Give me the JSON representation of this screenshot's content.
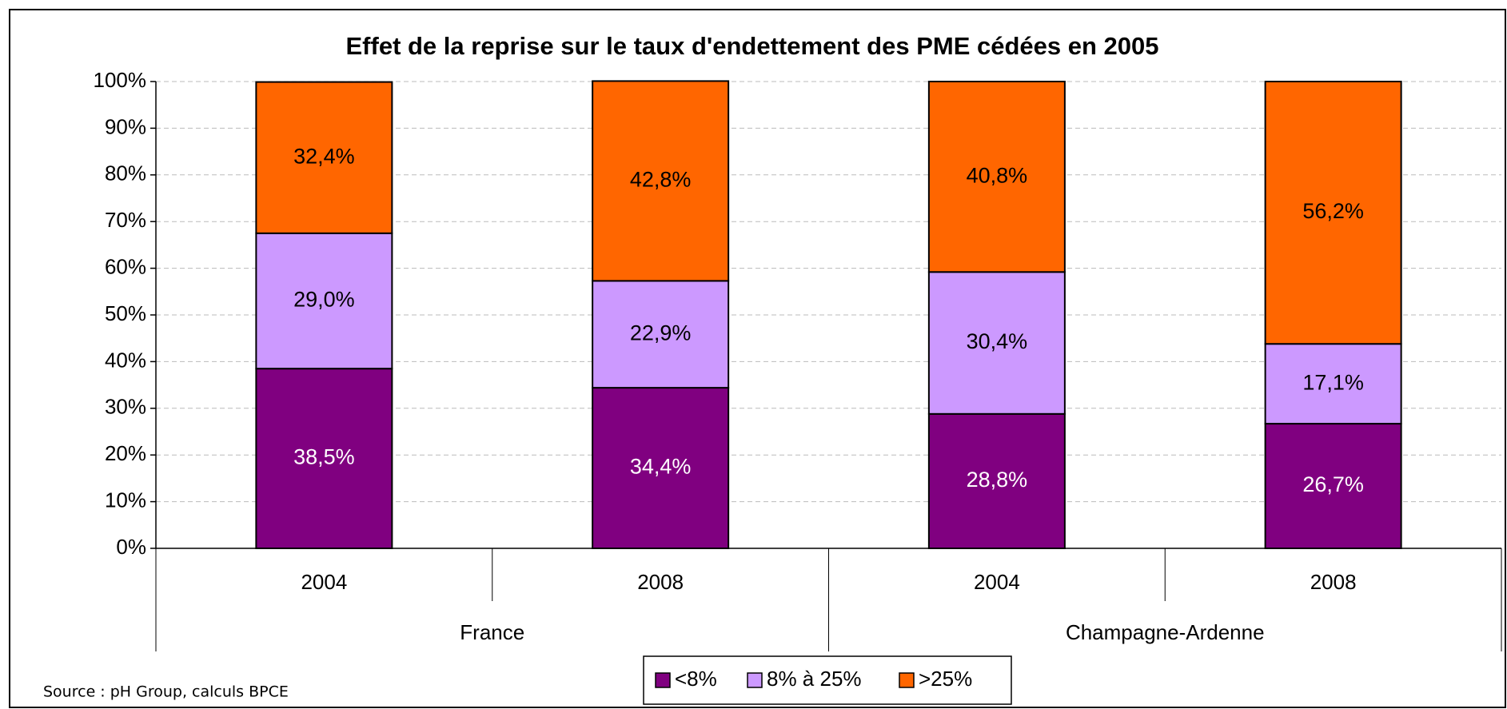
{
  "chart_data": {
    "type": "stacked_bar",
    "title": "Effet de la reprise sur le taux d'endettement des PME cédées en 2005",
    "categories": [
      "2004",
      "2008",
      "2004",
      "2008"
    ],
    "groups": [
      {
        "name": "France",
        "size": 2
      },
      {
        "name": "Champagne-Ardenne",
        "size": 2
      }
    ],
    "series": [
      {
        "name": "<8%",
        "color": "#800080",
        "label_color": "#ffffff",
        "values": [
          38.5,
          34.4,
          28.8,
          26.7
        ],
        "value_labels": [
          "38,5%",
          "34,4%",
          "28,8%",
          "26,7%"
        ]
      },
      {
        "name": "8% à 25%",
        "color": "#cc99ff",
        "label_color": "#000000",
        "values": [
          29.0,
          22.9,
          30.4,
          17.1
        ],
        "value_labels": [
          "29,0%",
          "22,9%",
          "30,4%",
          "17,1%"
        ]
      },
      {
        "name": ">25%",
        "color": "#ff6600",
        "label_color": "#000000",
        "values": [
          32.4,
          42.8,
          40.8,
          56.2
        ],
        "value_labels": [
          "32,4%",
          "42,8%",
          "40,8%",
          "56,2%"
        ]
      }
    ],
    "ylim": [
      0,
      100
    ],
    "yticks": [
      {
        "value": 0,
        "label": "0%"
      },
      {
        "value": 10,
        "label": "10%"
      },
      {
        "value": 20,
        "label": "20%"
      },
      {
        "value": 30,
        "label": "30%"
      },
      {
        "value": 40,
        "label": "40%"
      },
      {
        "value": 50,
        "label": "50%"
      },
      {
        "value": 60,
        "label": "60%"
      },
      {
        "value": 70,
        "label": "70%"
      },
      {
        "value": 80,
        "label": "80%"
      },
      {
        "value": 90,
        "label": "90%"
      },
      {
        "value": 100,
        "label": "100%"
      }
    ],
    "grid": true,
    "legend_position": "bottom",
    "source": "Source : pH Group, calculs BPCE"
  }
}
